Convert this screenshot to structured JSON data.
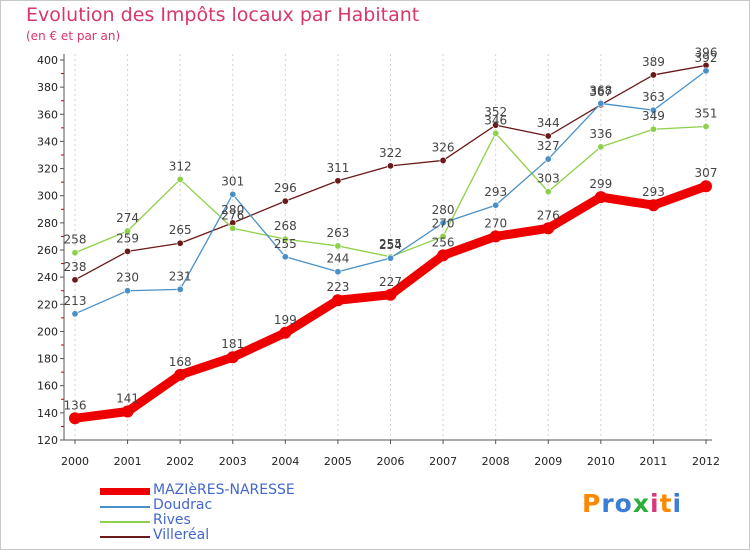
{
  "header": {
    "title": "Evolution des Impôts locaux par Habitant",
    "subtitle": "(en € et par an)"
  },
  "chart_data": {
    "type": "line",
    "title": "Evolution des Impôts locaux par Habitant",
    "subtitle": "(en € et par an)",
    "xlabel": "",
    "ylabel": "",
    "x": [
      "2000",
      "2001",
      "2002",
      "2003",
      "2004",
      "2005",
      "2006",
      "2007",
      "2008",
      "2009",
      "2010",
      "2011",
      "2012"
    ],
    "ylim": [
      120,
      400
    ],
    "yticks": [
      "120",
      "140",
      "160",
      "180",
      "200",
      "220",
      "240",
      "260",
      "280",
      "300",
      "320",
      "340",
      "360",
      "380",
      "400"
    ],
    "grid": "vertical",
    "legend": "bottom-left",
    "series": [
      {
        "name": "MAZIèRES-NARESSE",
        "color": "#ee0000",
        "values": [
          136,
          141,
          168,
          181,
          199,
          223,
          227,
          256,
          270,
          276,
          299,
          293,
          307
        ]
      },
      {
        "name": "Doudrac",
        "color": "#4a90c8",
        "values": [
          213,
          230,
          231,
          301,
          255,
          244,
          254,
          280,
          293,
          327,
          368,
          363,
          392
        ]
      },
      {
        "name": "Rives",
        "color": "#8ed04a",
        "values": [
          258,
          274,
          312,
          276,
          268,
          263,
          255,
          270,
          346,
          303,
          336,
          349,
          351
        ]
      },
      {
        "name": "Villeréal",
        "color": "#6b1a1a",
        "values": [
          238,
          259,
          265,
          280,
          296,
          311,
          322,
          326,
          352,
          344,
          367,
          389,
          396
        ]
      }
    ]
  },
  "legend_items": [
    "MAZIèRES-NARESSE",
    "Doudrac",
    "Rives",
    "Villeréal"
  ],
  "logo": {
    "letters": [
      "P",
      "r",
      "o",
      "x",
      "i",
      "t",
      "i"
    ],
    "colors": [
      "#ff8800",
      "#3a7ed8",
      "#3a7ed8",
      "#2cae3a",
      "#d73a7a",
      "#ff8800",
      "#3a7ed8"
    ]
  }
}
